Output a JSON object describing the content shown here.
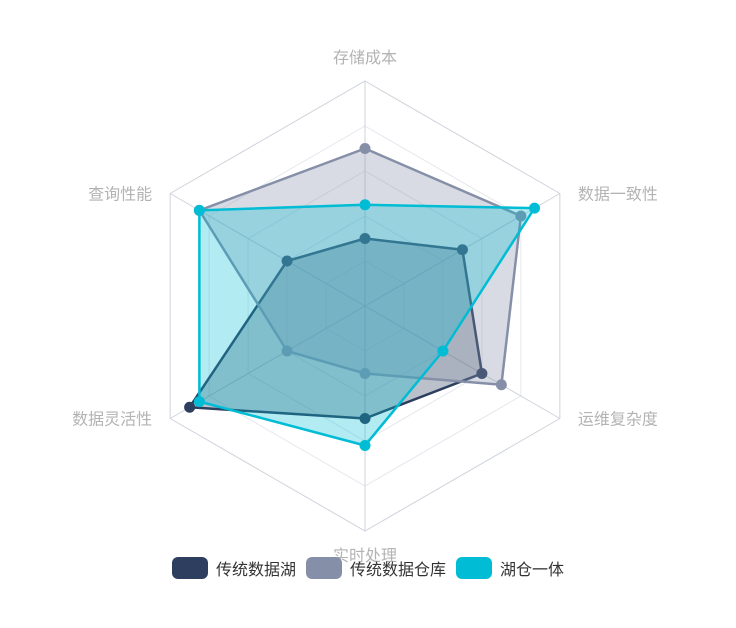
{
  "chart_data": {
    "type": "radar",
    "indicators": [
      "存储成本",
      "数据一致性",
      "运维复杂度",
      "实时处理",
      "数据灵活性",
      "查询性能"
    ],
    "max": 10,
    "series": [
      {
        "name": "传统数据湖",
        "color": "#2d3e5e",
        "values": [
          3,
          5,
          6,
          5,
          9,
          4
        ]
      },
      {
        "name": "传统数据仓库",
        "color": "#8590a8",
        "values": [
          7,
          8,
          7,
          3,
          4,
          8.5
        ]
      },
      {
        "name": "湖仓一体",
        "color": "#00bcd4",
        "values": [
          4.5,
          8.7,
          4,
          6.2,
          8.5,
          8.5
        ]
      }
    ],
    "legend_position": "bottom"
  }
}
